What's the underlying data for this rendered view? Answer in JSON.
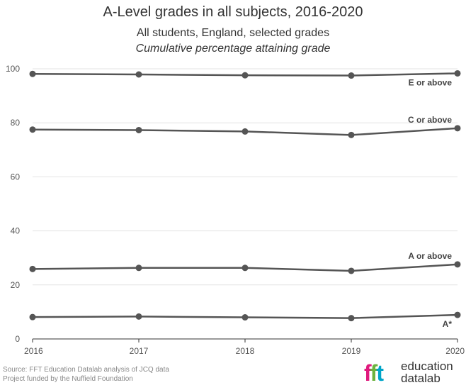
{
  "chart_data": {
    "type": "line",
    "title": "A-Level grades in all subjects, 2016-2020",
    "subtitle": "All students, England, selected grades",
    "subtitle2": "Cumulative percentage attaining grade",
    "x": [
      "2016",
      "2017",
      "2018",
      "2019",
      "2020"
    ],
    "ylim": [
      0,
      100
    ],
    "yticks": [
      0,
      20,
      40,
      60,
      80,
      100
    ],
    "grid": true,
    "series": [
      {
        "name": "E or above",
        "values": [
          98.1,
          97.9,
          97.6,
          97.5,
          98.3
        ]
      },
      {
        "name": "C or above",
        "values": [
          77.5,
          77.3,
          76.8,
          75.5,
          78.0
        ]
      },
      {
        "name": "A or above",
        "values": [
          25.9,
          26.3,
          26.3,
          25.2,
          27.6
        ]
      },
      {
        "name": "A*",
        "values": [
          8.1,
          8.3,
          8.0,
          7.7,
          8.9
        ]
      }
    ],
    "line_color": "#555555"
  },
  "source": {
    "line1": "Source: FFT Education Datalab analysis of JCQ data",
    "line2": "Project funded by the Nuffield Foundation"
  },
  "logo": {
    "mark": "fft",
    "text1": "education",
    "text2": "datalab"
  }
}
